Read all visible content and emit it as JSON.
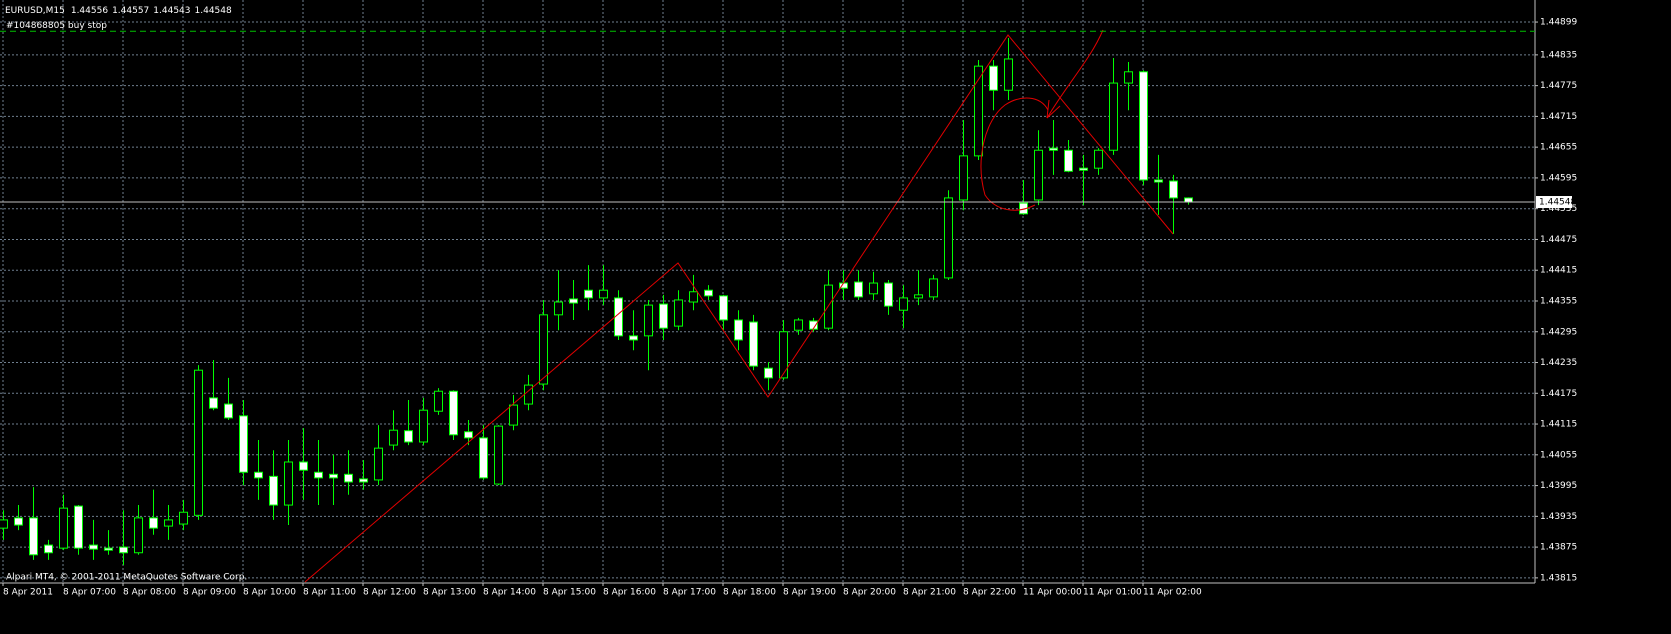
{
  "chart_data": {
    "type": "candlestick",
    "title": "EURUSD,M15",
    "categories": [
      "8 Apr 2011",
      null,
      null,
      null,
      "8 Apr 07:00",
      null,
      null,
      null,
      "8 Apr 08:00",
      null,
      null,
      null,
      "8 Apr 09:00",
      null,
      null,
      null,
      "8 Apr 10:00",
      null,
      null,
      null,
      "8 Apr 11:00",
      null,
      null,
      null,
      "8 Apr 12:00",
      null,
      null,
      null,
      "8 Apr 13:00",
      null,
      null,
      null,
      "8 Apr 14:00",
      null,
      null,
      null,
      "8 Apr 15:00",
      null,
      null,
      null,
      "8 Apr 16:00",
      null,
      null,
      null,
      "8 Apr 17:00",
      null,
      null,
      null,
      "8 Apr 18:00",
      null,
      null,
      null,
      "8 Apr 19:00",
      null,
      null,
      null,
      "8 Apr 20:00",
      null,
      null,
      null,
      "8 Apr 21:00",
      null,
      null,
      null,
      "8 Apr 22:00",
      null,
      null,
      null,
      "11 Apr 00:00",
      null,
      null,
      null,
      "11 Apr 01:00",
      null,
      null,
      null,
      "11 Apr 02:00",
      null,
      null,
      null
    ],
    "open": [
      1.43912,
      1.43932,
      1.43932,
      1.43879,
      1.43873,
      1.43955,
      1.43879,
      1.43873,
      1.43875,
      1.43864,
      1.43932,
      1.43916,
      1.4392,
      1.43937,
      1.44166,
      1.44154,
      1.44131,
      1.44021,
      1.44013,
      1.43957,
      1.44041,
      1.44021,
      1.44017,
      1.44017,
      1.44008,
      1.44006,
      1.44074,
      1.44102,
      1.4408,
      1.4414,
      1.44179,
      1.441,
      1.44088,
      1.43998,
      1.44113,
      1.44154,
      1.44193,
      1.44328,
      1.44359,
      1.44376,
      1.44361,
      1.44361,
      1.44287,
      1.44287,
      1.44349,
      1.44306,
      1.44353,
      1.44376,
      1.44365,
      1.44318,
      1.44314,
      1.44224,
      1.44205,
      1.44298,
      1.44316,
      1.44302,
      1.4439,
      1.44392,
      1.44369,
      1.4439,
      1.44337,
      1.44361,
      1.44363,
      1.444,
      1.44552,
      1.44638,
      1.44813,
      1.44766,
      1.44546,
      1.44552,
      1.44653,
      1.44649,
      1.44614,
      1.44614,
      1.44649,
      1.4478,
      1.44802,
      1.44591,
      1.44589,
      1.44556
    ],
    "high": [
      1.43947,
      1.43957,
      1.43992,
      1.43889,
      1.43977,
      1.43957,
      1.43928,
      1.43908,
      1.43947,
      1.43957,
      1.43987,
      1.43957,
      1.43967,
      1.4423,
      1.4424,
      1.44205,
      1.44162,
      1.44084,
      1.44064,
      1.44084,
      1.44107,
      1.44084,
      1.44055,
      1.44064,
      1.44045,
      1.44113,
      1.44142,
      1.44162,
      1.44166,
      1.44185,
      1.44181,
      1.44123,
      1.44113,
      1.44113,
      1.44172,
      1.44211,
      1.44357,
      1.44415,
      1.44396,
      1.44425,
      1.44425,
      1.44376,
      1.44337,
      1.44357,
      1.44367,
      1.44376,
      1.44406,
      1.44386,
      1.44367,
      1.44337,
      1.44328,
      1.44236,
      1.44318,
      1.44322,
      1.44322,
      1.44415,
      1.44415,
      1.44415,
      1.44412,
      1.44396,
      1.44386,
      1.44415,
      1.44406,
      1.44571,
      1.44708,
      1.44825,
      1.44825,
      1.44868,
      1.44591,
      1.44688,
      1.44708,
      1.44669,
      1.4464,
      1.44653,
      1.44829,
      1.44821,
      1.44805,
      1.4464,
      1.44601,
      1.44557
    ],
    "low": [
      1.43889,
      1.43908,
      1.4385,
      1.4385,
      1.43869,
      1.4386,
      1.4385,
      1.4386,
      1.4384,
      1.4386,
      1.43899,
      1.43889,
      1.43908,
      1.43928,
      1.44142,
      1.44123,
      1.43996,
      1.43967,
      1.43928,
      1.43918,
      1.43967,
      1.43957,
      1.43957,
      1.43977,
      1.43987,
      1.43996,
      1.44064,
      1.44074,
      1.44074,
      1.44133,
      1.44084,
      1.44074,
      1.44006,
      1.43996,
      1.44103,
      1.44142,
      1.44181,
      1.44298,
      1.44318,
      1.44337,
      1.44347,
      1.44279,
      1.44259,
      1.4422,
      1.44279,
      1.44298,
      1.44337,
      1.44357,
      1.44298,
      1.44259,
      1.4422,
      1.44181,
      1.44201,
      1.44289,
      1.44295,
      1.44298,
      1.44357,
      1.44357,
      1.44357,
      1.44328,
      1.44302,
      1.44347,
      1.44357,
      1.44396,
      1.44532,
      1.4463,
      1.44727,
      1.44747,
      1.44523,
      1.44542,
      1.44601,
      1.44606,
      1.44542,
      1.44601,
      1.4464,
      1.44727,
      1.44581,
      1.44523,
      1.44486,
      1.44543
    ],
    "close": [
      1.43928,
      1.43918,
      1.4386,
      1.43864,
      1.43951,
      1.43873,
      1.43871,
      1.43869,
      1.43864,
      1.43932,
      1.43912,
      1.43928,
      1.43943,
      1.4422,
      1.44146,
      1.44127,
      1.44021,
      1.4401,
      1.43957,
      1.44041,
      1.44025,
      1.4401,
      1.4401,
      1.44002,
      1.44002,
      1.44068,
      1.44103,
      1.4408,
      1.44142,
      1.44179,
      1.44094,
      1.44088,
      1.4401,
      1.44111,
      1.44152,
      1.44191,
      1.44328,
      1.44353,
      1.44351,
      1.44361,
      1.44376,
      1.44287,
      1.44279,
      1.44347,
      1.44302,
      1.44357,
      1.44373,
      1.44365,
      1.44318,
      1.44279,
      1.44228,
      1.44205,
      1.44295,
      1.44318,
      1.443,
      1.44386,
      1.4438,
      1.44363,
      1.4439,
      1.44345,
      1.44361,
      1.44367,
      1.44398,
      1.44556,
      1.44638,
      1.44813,
      1.44766,
      1.44827,
      1.44525,
      1.44649,
      1.44649,
      1.44608,
      1.4461,
      1.44649,
      1.4478,
      1.44802,
      1.44591,
      1.44587,
      1.44556,
      1.44548
    ],
    "ylim": [
      1.43805,
      1.44942
    ],
    "yticks": [
      1.44899,
      1.44835,
      1.44775,
      1.44715,
      1.44655,
      1.44595,
      1.44535,
      1.44475,
      1.44415,
      1.44355,
      1.44295,
      1.44235,
      1.44175,
      1.44115,
      1.44055,
      1.43995,
      1.43935,
      1.43875,
      1.43815
    ],
    "grid": true,
    "wick_color": "#00ff00",
    "up_color": "#000000",
    "down_color": "#ffffff",
    "order_line": {
      "label": "#104868805 buy stop",
      "value": 1.44881,
      "color": "#00c000"
    },
    "footer": "Alpari MT4, © 2001-2011 MetaQuotes Software Corp."
  }
}
